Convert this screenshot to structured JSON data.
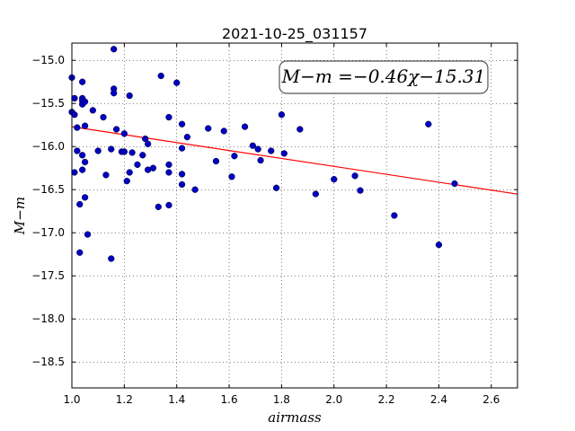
{
  "chart_data": {
    "type": "scatter",
    "title": "2021-10-25_031157",
    "xlabel": "airmass",
    "ylabel": "M−m",
    "xlim": [
      1.0,
      2.7
    ],
    "ylim": [
      -18.8,
      -14.8
    ],
    "y_inverted": true,
    "grid": true,
    "x_ticks": [
      1.0,
      1.2,
      1.4,
      1.6,
      1.8,
      2.0,
      2.2,
      2.4,
      2.6
    ],
    "x_tick_labels": [
      "1.0",
      "1.2",
      "1.4",
      "1.6",
      "1.8",
      "2.0",
      "2.2",
      "2.4",
      "2.6"
    ],
    "y_ticks": [
      -15.0,
      -15.5,
      -16.0,
      -16.5,
      -17.0,
      -17.5,
      -18.0,
      -18.5
    ],
    "y_tick_labels": [
      "−15.0",
      "−15.5",
      "−16.0",
      "−16.5",
      "−17.0",
      "−17.5",
      "−18.0",
      "−18.5"
    ],
    "annotation": "M−m =−0.46χ−15.31",
    "marker_color": "#0000bf",
    "fit_color": "#ff0000",
    "fit": {
      "slope": -0.46,
      "intercept": -15.31
    },
    "points": [
      {
        "x": 1.0,
        "y": -15.2
      },
      {
        "x": 1.01,
        "y": -15.44
      },
      {
        "x": 1.0,
        "y": -15.6
      },
      {
        "x": 1.01,
        "y": -15.63
      },
      {
        "x": 1.02,
        "y": -15.78
      },
      {
        "x": 1.01,
        "y": -16.3
      },
      {
        "x": 1.02,
        "y": -16.05
      },
      {
        "x": 1.03,
        "y": -16.67
      },
      {
        "x": 1.03,
        "y": -17.23
      },
      {
        "x": 1.04,
        "y": -15.25
      },
      {
        "x": 1.04,
        "y": -15.44
      },
      {
        "x": 1.04,
        "y": -15.47
      },
      {
        "x": 1.04,
        "y": -15.51
      },
      {
        "x": 1.05,
        "y": -15.48
      },
      {
        "x": 1.05,
        "y": -15.76
      },
      {
        "x": 1.04,
        "y": -16.1
      },
      {
        "x": 1.05,
        "y": -16.18
      },
      {
        "x": 1.04,
        "y": -16.27
      },
      {
        "x": 1.05,
        "y": -16.59
      },
      {
        "x": 1.06,
        "y": -17.02
      },
      {
        "x": 1.08,
        "y": -15.58
      },
      {
        "x": 1.1,
        "y": -16.05
      },
      {
        "x": 1.12,
        "y": -15.66
      },
      {
        "x": 1.13,
        "y": -16.33
      },
      {
        "x": 1.15,
        "y": -16.03
      },
      {
        "x": 1.15,
        "y": -17.3
      },
      {
        "x": 1.16,
        "y": -14.87
      },
      {
        "x": 1.16,
        "y": -15.33
      },
      {
        "x": 1.16,
        "y": -15.38
      },
      {
        "x": 1.17,
        "y": -15.8
      },
      {
        "x": 1.19,
        "y": -16.06
      },
      {
        "x": 1.2,
        "y": -15.85
      },
      {
        "x": 1.2,
        "y": -16.06
      },
      {
        "x": 1.21,
        "y": -16.4
      },
      {
        "x": 1.22,
        "y": -15.41
      },
      {
        "x": 1.22,
        "y": -16.3
      },
      {
        "x": 1.23,
        "y": -16.07
      },
      {
        "x": 1.25,
        "y": -16.21
      },
      {
        "x": 1.27,
        "y": -16.1
      },
      {
        "x": 1.28,
        "y": -15.91
      },
      {
        "x": 1.29,
        "y": -15.97
      },
      {
        "x": 1.29,
        "y": -16.27
      },
      {
        "x": 1.31,
        "y": -16.25
      },
      {
        "x": 1.33,
        "y": -16.7
      },
      {
        "x": 1.34,
        "y": -15.18
      },
      {
        "x": 1.37,
        "y": -16.68
      },
      {
        "x": 1.37,
        "y": -15.66
      },
      {
        "x": 1.37,
        "y": -16.21
      },
      {
        "x": 1.37,
        "y": -16.3
      },
      {
        "x": 1.4,
        "y": -15.26
      },
      {
        "x": 1.42,
        "y": -15.74
      },
      {
        "x": 1.42,
        "y": -16.02
      },
      {
        "x": 1.42,
        "y": -16.32
      },
      {
        "x": 1.42,
        "y": -16.44
      },
      {
        "x": 1.44,
        "y": -15.89
      },
      {
        "x": 1.47,
        "y": -16.5
      },
      {
        "x": 1.52,
        "y": -15.79
      },
      {
        "x": 1.55,
        "y": -16.17
      },
      {
        "x": 1.58,
        "y": -15.82
      },
      {
        "x": 1.61,
        "y": -16.35
      },
      {
        "x": 1.62,
        "y": -16.11
      },
      {
        "x": 1.66,
        "y": -15.77
      },
      {
        "x": 1.69,
        "y": -15.99
      },
      {
        "x": 1.71,
        "y": -16.03
      },
      {
        "x": 1.72,
        "y": -16.16
      },
      {
        "x": 1.76,
        "y": -16.05
      },
      {
        "x": 1.78,
        "y": -16.48
      },
      {
        "x": 1.8,
        "y": -15.63
      },
      {
        "x": 1.81,
        "y": -16.08
      },
      {
        "x": 1.87,
        "y": -15.8
      },
      {
        "x": 1.93,
        "y": -16.55
      },
      {
        "x": 2.0,
        "y": -16.38
      },
      {
        "x": 2.08,
        "y": -16.34
      },
      {
        "x": 2.1,
        "y": -16.51
      },
      {
        "x": 2.23,
        "y": -16.8
      },
      {
        "x": 2.36,
        "y": -15.74
      },
      {
        "x": 2.4,
        "y": -17.14
      },
      {
        "x": 2.46,
        "y": -16.43
      }
    ]
  }
}
